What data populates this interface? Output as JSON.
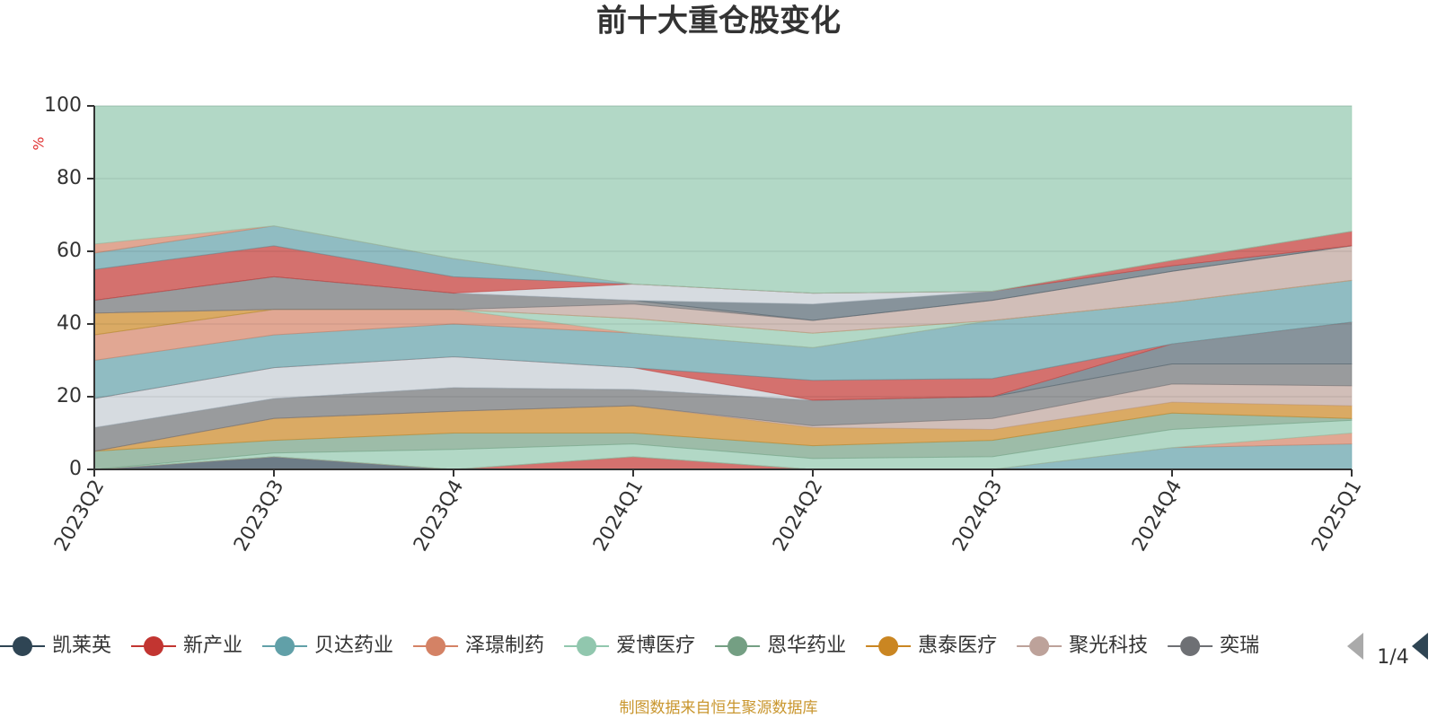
{
  "chart_data": {
    "type": "stacked_area",
    "title": "前十大重仓股变化",
    "y_label": "%",
    "source": "制图数据来自恒生聚源数据库",
    "legend_page": "1/4",
    "categories": [
      "2023Q2",
      "2023Q3",
      "2023Q4",
      "2024Q1",
      "2024Q2",
      "2024Q3",
      "2024Q4",
      "2025Q1"
    ],
    "ylim": [
      0,
      100
    ],
    "yticks": [
      0,
      20,
      40,
      60,
      80,
      100
    ],
    "grid": true,
    "series": [
      {
        "name": "凯莱英",
        "color": "#2f4554",
        "values": [
          0,
          3.5,
          0,
          0,
          0,
          0,
          0,
          0
        ]
      },
      {
        "name": "新产业",
        "color": "#c23531",
        "values": [
          0,
          0,
          0,
          3.5,
          0,
          0,
          0,
          0
        ]
      },
      {
        "name": "贝达药业",
        "color": "#61a0a8",
        "values": [
          0,
          0,
          0,
          0,
          0,
          0,
          6,
          7
        ]
      },
      {
        "name": "泽璟制药",
        "color": "#d48265",
        "values": [
          0,
          0,
          0,
          0,
          0,
          0,
          0,
          3
        ]
      },
      {
        "name": "爱博医疗",
        "color": "#91c7ae",
        "values": [
          0,
          1,
          5.5,
          3.5,
          3,
          3.5,
          5,
          3.5
        ]
      },
      {
        "name": "恩华药业",
        "color": "#749f83",
        "values": [
          5,
          3.5,
          4.5,
          3,
          3.5,
          4.5,
          4.5,
          0.5
        ]
      },
      {
        "name": "惠泰医疗",
        "color": "#ca8622",
        "values": [
          0,
          6,
          6,
          7.5,
          5,
          3,
          3,
          3.5
        ]
      },
      {
        "name": "聚光科技",
        "color": "#bda29a",
        "values": [
          0,
          0,
          0,
          0,
          0.5,
          3,
          5,
          5.5
        ]
      },
      {
        "name": "奕瑞",
        "color": "#6e7074",
        "values": [
          6.5,
          5.5,
          6.5,
          4.5,
          7,
          6,
          5.5,
          6
        ]
      },
      {
        "color": "#546570",
        "values": [
          0,
          0,
          0,
          0,
          0,
          0,
          5.5,
          11.5
        ]
      },
      {
        "color": "#c4ccd3",
        "values": [
          8,
          8.5,
          8.5,
          6,
          0,
          0,
          0,
          0
        ]
      },
      {
        "color": "#c23531",
        "values": [
          0,
          0,
          0,
          0,
          5.5,
          5,
          0,
          0
        ]
      },
      {
        "color": "#61a0a8",
        "values": [
          10.5,
          9,
          9,
          9.5,
          9,
          16,
          11.5,
          11.5
        ]
      },
      {
        "color": "#d48265",
        "values": [
          7,
          7,
          4,
          0,
          0,
          0,
          0,
          0
        ]
      },
      {
        "color": "#91c7ae",
        "values": [
          0,
          0,
          0,
          4,
          4,
          0,
          0,
          0
        ]
      },
      {
        "color": "#ca8622",
        "values": [
          6,
          0,
          0,
          0,
          0,
          0,
          0,
          0
        ]
      },
      {
        "color": "#bda29a",
        "values": [
          0,
          0,
          0,
          4,
          3.5,
          5.5,
          8.5,
          9.5
        ]
      },
      {
        "color": "#6e7074",
        "values": [
          3.5,
          9,
          4.5,
          1,
          0,
          0,
          0,
          0
        ]
      },
      {
        "color": "#546570",
        "values": [
          0,
          0,
          0,
          0,
          4.5,
          2.5,
          1.5,
          0
        ]
      },
      {
        "color": "#c4ccd3",
        "values": [
          0,
          0,
          0,
          4.5,
          3,
          0,
          0,
          0
        ]
      },
      {
        "color": "#c23531",
        "values": [
          8.5,
          8.5,
          4.5,
          0,
          0,
          0,
          1.5,
          4
        ]
      },
      {
        "color": "#61a0a8",
        "values": [
          4.5,
          5.5,
          5,
          0,
          0,
          0,
          0,
          0
        ]
      },
      {
        "color": "#d48265",
        "values": [
          2.5,
          0,
          0,
          0,
          0,
          0,
          0,
          0
        ]
      },
      {
        "color": "#91c7ae",
        "values": [
          38,
          33,
          42,
          49,
          51.5,
          51,
          42.5,
          34.5
        ]
      }
    ]
  }
}
